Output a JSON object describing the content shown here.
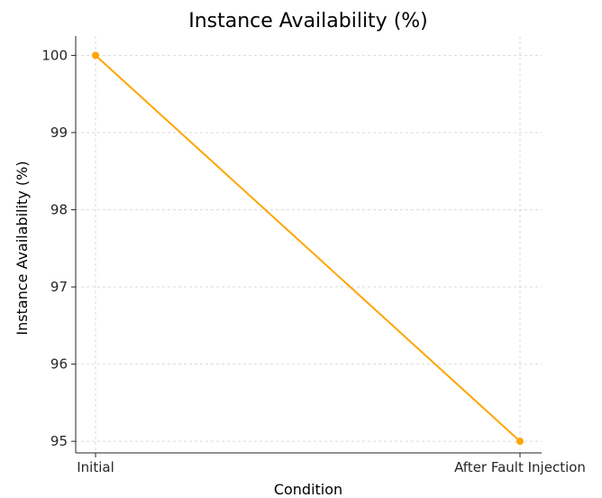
{
  "chart_data": {
    "type": "line",
    "title": "Instance Availability (%)",
    "xlabel": "Condition",
    "ylabel": "Instance Availability (%)",
    "categories": [
      "Initial",
      "After Fault Injection"
    ],
    "series": [
      {
        "values": [
          100,
          95
        ]
      }
    ],
    "ylim": [
      94.85,
      100.25
    ],
    "yticks": [
      "95",
      "96",
      "97",
      "98",
      "99",
      "100"
    ],
    "grid": true,
    "line_color": "#FFA500",
    "axis_color": "#262626",
    "grid_color": "#d9d9d9"
  }
}
